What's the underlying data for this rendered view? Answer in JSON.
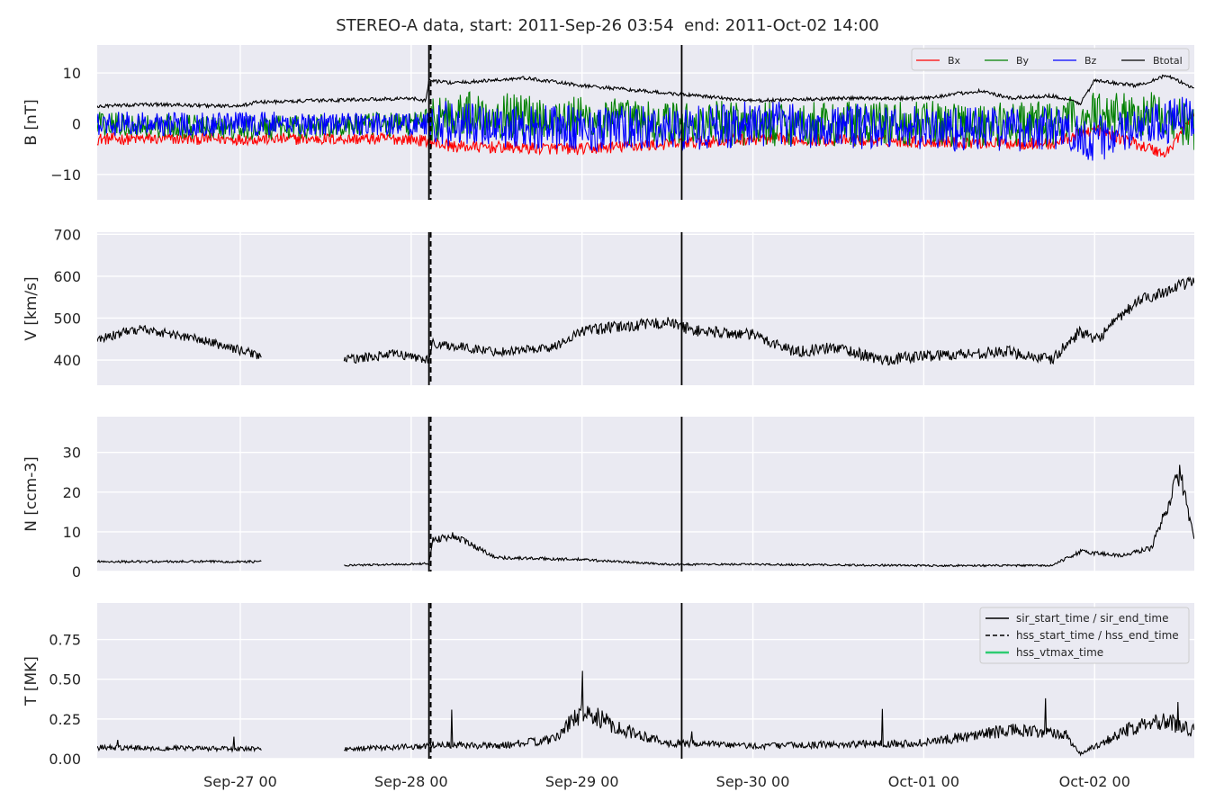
{
  "figure": {
    "title": "STEREO-A data, start: 2011-Sep-26 03:54  end: 2011-Oct-02 14:00"
  },
  "colors": {
    "background": "#eaeaf2",
    "grid": "#ffffff",
    "bx": "#ff0000",
    "by": "#008000",
    "bz": "#0000ff",
    "btotal": "#000000",
    "marker": "#000000",
    "hss_vtmax": "#2ecc71"
  },
  "chart_data": [
    {
      "type": "line",
      "ylabel": "B [nT]",
      "ylim": [
        -15,
        15.5
      ],
      "yticks": [
        -10,
        0,
        10
      ],
      "x_range": [
        "2011-09-26 03:54",
        "2011-10-02 14:00"
      ],
      "grid": true,
      "legend": {
        "placement": "top-right",
        "columns": 4,
        "entries": [
          {
            "label": "Bx",
            "color": "#ff0000"
          },
          {
            "label": "By",
            "color": "#008000"
          },
          {
            "label": "Bz",
            "color": "#0000ff"
          },
          {
            "label": "Btotal",
            "color": "#000000"
          }
        ]
      },
      "series": [
        {
          "name": "Btotal",
          "color": "#000000",
          "x": [
            "09-26 04:00",
            "09-26 12:00",
            "09-27 00:00",
            "09-27 02:00",
            "09-27 12:00",
            "09-28 00:00",
            "09-28 02:00",
            "09-28 02:30",
            "09-28 06:00",
            "09-28 16:00",
            "09-29 00:00",
            "09-29 12:00",
            "09-30 00:00",
            "09-30 12:00",
            "10-01 00:00",
            "10-01 08:00",
            "10-01 12:00",
            "10-01 18:00",
            "10-01 22:00",
            "10-02 00:00",
            "10-02 06:00",
            "10-02 10:00",
            "10-02 14:00"
          ],
          "values": [
            3.5,
            3.8,
            3.4,
            4.2,
            4.6,
            5.0,
            4.5,
            8.5,
            8.0,
            9.0,
            7.5,
            6.0,
            4.5,
            5.0,
            5.0,
            6.5,
            5.0,
            5.5,
            4.0,
            8.5,
            7.5,
            9.5,
            7.0
          ]
        },
        {
          "name": "Bx",
          "color": "#ff0000",
          "x": [
            "09-26 04:00",
            "09-27 00:00",
            "09-28 00:00",
            "09-28 06:00",
            "09-29 00:00",
            "09-29 12:00",
            "09-30 00:00",
            "10-01 00:00",
            "10-01 18:00",
            "10-02 00:00",
            "10-02 10:00",
            "10-02 14:00"
          ],
          "values": [
            -3,
            -3,
            -3,
            -4.5,
            -5,
            -4,
            -3,
            -3.5,
            -4,
            -1,
            -6,
            2
          ]
        },
        {
          "name": "By",
          "color": "#008000",
          "x": [
            "09-26 04:00",
            "09-27 00:00",
            "09-28 00:00",
            "09-28 06:00",
            "09-29 00:00",
            "09-29 12:00",
            "09-30 00:00",
            "10-01 00:00",
            "10-01 18:00",
            "10-02 00:00",
            "10-02 10:00",
            "10-02 14:00"
          ],
          "values": [
            0,
            -1,
            0,
            2,
            1,
            0,
            0,
            0,
            0,
            2,
            2,
            -1
          ]
        },
        {
          "name": "Bz",
          "color": "#0000ff",
          "x": [
            "09-26 04:00",
            "09-27 00:00",
            "09-28 00:00",
            "09-28 06:00",
            "09-29 00:00",
            "09-29 12:00",
            "09-30 00:00",
            "10-01 00:00",
            "10-01 18:00",
            "10-02 00:00",
            "10-02 10:00",
            "10-02 14:00"
          ],
          "values": [
            0,
            0,
            0,
            0,
            -1,
            -1,
            0,
            -1,
            -1,
            -3,
            0,
            2
          ]
        }
      ]
    },
    {
      "type": "line",
      "ylabel": "V [km/s]",
      "ylim": [
        340,
        705
      ],
      "yticks": [
        400,
        500,
        600,
        700
      ],
      "grid": true,
      "gap": [
        "09-27 03:00",
        "09-27 14:30"
      ],
      "series": [
        {
          "name": "V",
          "color": "#000000",
          "x": [
            "09-26 04:00",
            "09-26 10:00",
            "09-26 18:00",
            "09-27 03:00",
            "09-27 14:30",
            "09-27 22:00",
            "09-28 02:30",
            "09-28 03:00",
            "09-28 12:00",
            "09-28 20:00",
            "09-29 00:00",
            "09-29 12:00",
            "09-29 16:00",
            "09-30 00:00",
            "09-30 06:00",
            "09-30 12:00",
            "09-30 18:00",
            "10-01 00:00",
            "10-01 12:00",
            "10-01 18:00",
            "10-01 22:00",
            "10-02 00:00",
            "10-02 06:00",
            "10-02 14:00"
          ],
          "values": [
            450,
            475,
            450,
            410,
            400,
            415,
            400,
            440,
            420,
            430,
            470,
            490,
            470,
            460,
            420,
            430,
            400,
            410,
            420,
            400,
            470,
            445,
            540,
            590
          ]
        }
      ]
    },
    {
      "type": "line",
      "ylabel": "N [ccm-3]",
      "ylim": [
        0,
        39
      ],
      "yticks": [
        0,
        10,
        20,
        30
      ],
      "grid": true,
      "gap": [
        "09-27 03:00",
        "09-27 14:30"
      ],
      "series": [
        {
          "name": "N",
          "color": "#000000",
          "x": [
            "09-26 04:00",
            "09-27 03:00",
            "09-27 14:30",
            "09-28 02:30",
            "09-28 03:00",
            "09-28 06:00",
            "09-28 12:00",
            "09-29 00:00",
            "09-29 12:00",
            "09-30 00:00",
            "10-01 00:00",
            "10-01 18:00",
            "10-01 22:00",
            "10-02 04:00",
            "10-02 08:00",
            "10-02 12:00",
            "10-02 14:00"
          ],
          "values": [
            2.5,
            2.5,
            1.5,
            2.0,
            8.0,
            9.0,
            3.5,
            3.0,
            1.8,
            1.8,
            1.5,
            1.5,
            5.0,
            4.0,
            6.0,
            25,
            8
          ]
        }
      ]
    },
    {
      "type": "line",
      "ylabel": "T [MK]",
      "ylim": [
        0,
        0.98
      ],
      "yticks": [
        0.0,
        0.25,
        0.5,
        0.75
      ],
      "grid": true,
      "gap": [
        "09-27 03:00",
        "09-27 14:30"
      ],
      "legend": {
        "placement": "top-right",
        "entries": [
          {
            "label": "sir_start_time / sir_end_time",
            "style": "solid",
            "color": "#000000"
          },
          {
            "label": "hss_start_time / hss_end_time",
            "style": "dashed",
            "color": "#000000"
          },
          {
            "label": "hss_vtmax_time",
            "style": "solid",
            "color": "#2ecc71"
          }
        ]
      },
      "series": [
        {
          "name": "T",
          "color": "#000000",
          "x": [
            "09-26 04:00",
            "09-27 03:00",
            "09-27 14:30",
            "09-28 02:30",
            "09-28 03:00",
            "09-28 12:00",
            "09-28 20:00",
            "09-29 00:00",
            "09-29 06:00",
            "09-29 12:00",
            "09-30 00:00",
            "10-01 00:00",
            "10-01 12:00",
            "10-01 20:00",
            "10-01 22:00",
            "10-02 00:00",
            "10-02 08:00",
            "10-02 14:00"
          ],
          "values": [
            0.07,
            0.06,
            0.06,
            0.08,
            0.09,
            0.08,
            0.12,
            0.3,
            0.18,
            0.1,
            0.08,
            0.1,
            0.18,
            0.15,
            0.03,
            0.08,
            0.25,
            0.18
          ]
        }
      ]
    }
  ],
  "x_axis": {
    "ticks": [
      {
        "label": "Sep-27 00",
        "time": "09-27 00:00"
      },
      {
        "label": "Sep-28 00",
        "time": "09-28 00:00"
      },
      {
        "label": "Sep-29 00",
        "time": "09-29 00:00"
      },
      {
        "label": "Sep-30 00",
        "time": "09-30 00:00"
      },
      {
        "label": "Oct-01 00",
        "time": "10-01 00:00"
      },
      {
        "label": "Oct-02 00",
        "time": "10-02 00:00"
      }
    ]
  },
  "event_markers": {
    "sir_start_time": "09-28 02:30",
    "hss_start_time": "09-28 02:45",
    "sir_end_time": "09-29 14:00"
  }
}
